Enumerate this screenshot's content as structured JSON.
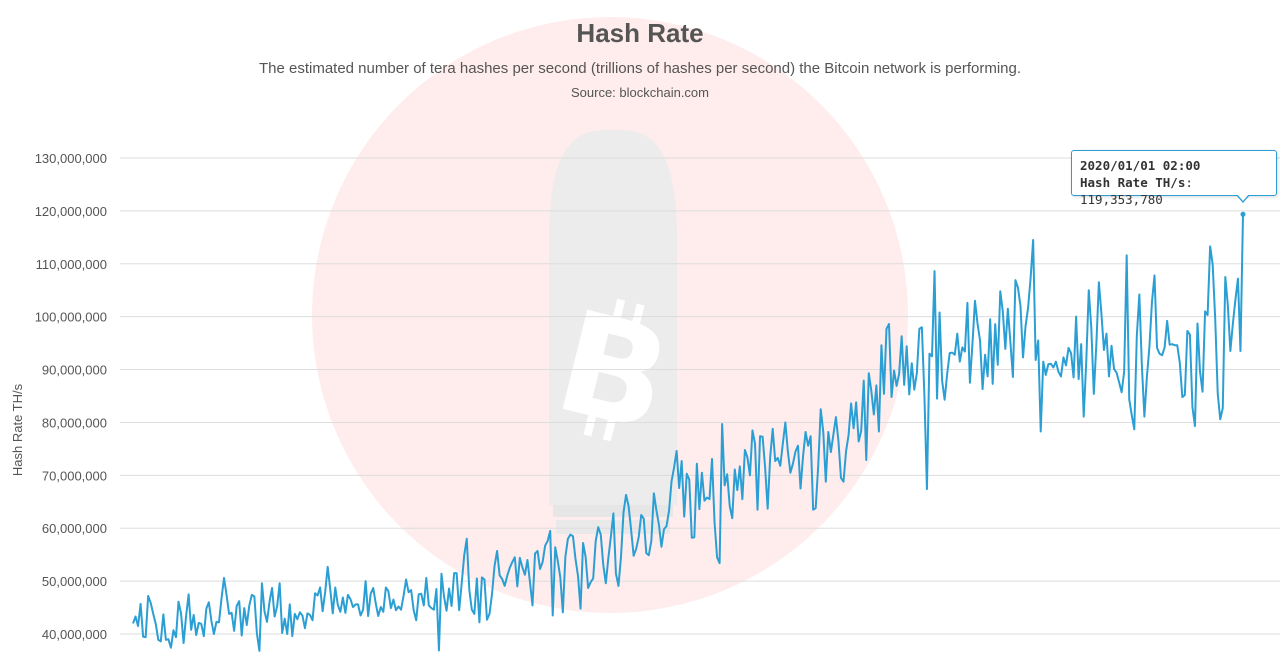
{
  "chart": {
    "title": "Hash Rate",
    "subtitle": "The estimated number of tera hashes per second (trillions of hashes per second) the Bitcoin network is performing.",
    "source": "Source: blockchain.com"
  },
  "tooltip": {
    "date": "2020/01/01 02:00",
    "series_label": "Hash Rate TH/s",
    "value_text": "119,353,780"
  },
  "colors": {
    "series": "#2b9fd4",
    "watermark_circle": "#ffecec",
    "watermark_bullet": "#ececec",
    "grid": "#dddddd",
    "axis_text": "#555555"
  },
  "watermark": {
    "icon": "bitcoin-bullet-icon"
  },
  "chart_data": {
    "type": "line",
    "ylabel": "Hash Rate TH/s",
    "xlabel": "",
    "ylim": [
      38000000,
      132000000
    ],
    "y_ticks": [
      40000000,
      50000000,
      60000000,
      70000000,
      80000000,
      90000000,
      100000000,
      110000000,
      120000000,
      130000000
    ],
    "y_tick_labels": [
      "40,000,000",
      "50,000,000",
      "60,000,000",
      "70,000,000",
      "80,000,000",
      "90,000,000",
      "100,000,000",
      "110,000,000",
      "120,000,000",
      "130,000,000"
    ],
    "grid": true,
    "series": [
      {
        "values": [
          42.0,
          43.3,
          41.5,
          45.7,
          39.5,
          39.4,
          47.2,
          45.9,
          43.8,
          41.9,
          38.9,
          38.6,
          43.7,
          38.9,
          39.0,
          37.4,
          40.7,
          39.4,
          46.1,
          43.9,
          38.3,
          43.4,
          47.5,
          40.8,
          43.6,
          39.8,
          42.1,
          41.9,
          39.6,
          44.8,
          46.0,
          42.5,
          40.0,
          42.3,
          42.2,
          46.7,
          50.6,
          47.4,
          43.8,
          44.0,
          40.6,
          45.3,
          46.2,
          39.7,
          44.9,
          41.7,
          45.4,
          47.4,
          47.1,
          40.1,
          36.8,
          49.6,
          44.3,
          42.3,
          46.1,
          48.7,
          43.3,
          45.2,
          49.6,
          40.2,
          42.9,
          40.0,
          45.6,
          39.6,
          43.8,
          42.8,
          44.1,
          43.5,
          41.1,
          43.9,
          43.6,
          42.6,
          47.7,
          47.3,
          48.8,
          44.3,
          47.9,
          52.7,
          48.5,
          43.9,
          48.8,
          45.5,
          44.2,
          46.9,
          44.0,
          47.4,
          46.6,
          45.1,
          45.6,
          45.6,
          43.5,
          44.6,
          50.0,
          43.4,
          47.6,
          48.7,
          45.8,
          43.4,
          45.1,
          44.2,
          48.8,
          48.1,
          44.9,
          46.5,
          44.5,
          45.2,
          44.6,
          47.2,
          50.3,
          47.9,
          48.3,
          44.5,
          42.6,
          47.5,
          47.6,
          45.4,
          50.6,
          45.4,
          44.9,
          44.6,
          48.5,
          36.9,
          51.4,
          47.1,
          44.4,
          48.6,
          45.3,
          51.5,
          51.5,
          44.5,
          49.6,
          54.9,
          58.0,
          48.4,
          44.6,
          43.8,
          50.5,
          42.2,
          50.7,
          50.3,
          42.7,
          43.8,
          47.6,
          52.9,
          55.7,
          51.1,
          50.4,
          49.1,
          51.0,
          52.5,
          53.6,
          54.5,
          49.0,
          54.4,
          52.6,
          51.2,
          54.0,
          49.8,
          45.4,
          55.2,
          55.7,
          52.3,
          53.6,
          56.7,
          57.6,
          59.5,
          43.5,
          56.4,
          53.8,
          50.7,
          44.1,
          54.6,
          58.0,
          58.8,
          58.5,
          54.2,
          51.0,
          44.8,
          57.2,
          54.6,
          48.7,
          49.8,
          50.5,
          57.6,
          60.2,
          58.8,
          53.0,
          49.6,
          54.4,
          58.4,
          62.8,
          51.4,
          49.1,
          54.6,
          63.0,
          66.3,
          64.2,
          59.7,
          54.8,
          56.1,
          58.3,
          62.5,
          61.8,
          55.3,
          54.9,
          57.6,
          66.6,
          63.4,
          60.7,
          56.5,
          59.8,
          60.4,
          63.3,
          68.9,
          71.5,
          74.6,
          67.6,
          72.7,
          62.2,
          70.3,
          69.2,
          58.2,
          58.3,
          72.2,
          63.6,
          70.5,
          65.2,
          65.8,
          65.5,
          73.1,
          61.1,
          54.5,
          53.4,
          79.7,
          68.1,
          70.2,
          64.2,
          61.9,
          71.1,
          67.2,
          71.7,
          65.5,
          74.8,
          73.4,
          70.0,
          78.5,
          76.0,
          63.5,
          77.4,
          77.3,
          71.5,
          63.7,
          73.4,
          78.8,
          72.7,
          73.3,
          71.8,
          76.0,
          80.0,
          74.5,
          70.5,
          72.2,
          74.5,
          75.6,
          67.5,
          73.6,
          78.2,
          75.6,
          77.4,
          63.5,
          63.8,
          71.8,
          82.5,
          78.2,
          68.8,
          78.2,
          74.4,
          77.7,
          81.0,
          76.5,
          69.5,
          68.8,
          74.5,
          77.6,
          83.6,
          78.9,
          83.8,
          76.4,
          78.4,
          87.9,
          72.9,
          89.3,
          86.0,
          81.5,
          87.0,
          78.3,
          94.6,
          85.4,
          97.7,
          98.6,
          84.8,
          89.8,
          86.9,
          89.2,
          96.3,
          87.1,
          94.4,
          85.3,
          91.2,
          86.2,
          89.3,
          97.7,
          98.0,
          85.1,
          67.4,
          93.0,
          92.5,
          108.6,
          84.5,
          100.8,
          87.9,
          84.3,
          89.2,
          93.1,
          93.2,
          92.8,
          96.8,
          91.5,
          94.2,
          93.4,
          102.6,
          87.5,
          94.9,
          103.0,
          98.7,
          95.5,
          86.3,
          92.8,
          88.7,
          99.5,
          87.3,
          98.6,
          90.9,
          104.8,
          101.0,
          93.9,
          101.5,
          95.2,
          88.6,
          106.9,
          105.5,
          102.0,
          92.3,
          98.2,
          101.7,
          107.3,
          114.5,
          91.8,
          95.5,
          78.3,
          91.5,
          89.0,
          91.0,
          91.1,
          90.4,
          91.5,
          89.6,
          88.7,
          92.3,
          90.8,
          94.1,
          93.1,
          88.5,
          100.0,
          88.2,
          94.8,
          81.1,
          91.4,
          105.0,
          97.9,
          85.4,
          94.8,
          106.5,
          100.6,
          93.7,
          96.8,
          88.7,
          94.5,
          90.1,
          89.4,
          87.6,
          85.7,
          89.6,
          111.6,
          84.4,
          81.4,
          78.7,
          96.3,
          104.2,
          90.8,
          81.1,
          88.7,
          94.4,
          102.8,
          107.8,
          94.1,
          93.0,
          92.7,
          94.2,
          99.2,
          94.7,
          94.8,
          94.6,
          94.6,
          91.3,
          84.8,
          85.2,
          97.3,
          96.6,
          82.9,
          79.3,
          98.7,
          89.6,
          85.8,
          101.0,
          100.3,
          113.3,
          109.9,
          99.7,
          85.5,
          80.6,
          82.7,
          107.5,
          102.2,
          93.5,
          98.7,
          103.2,
          107.2,
          93.5,
          119.35378
        ]
      }
    ],
    "value_unit_multiplier": 1000000,
    "highlighted_point": {
      "date": "2020/01/01 02:00",
      "value": 119353780
    }
  }
}
